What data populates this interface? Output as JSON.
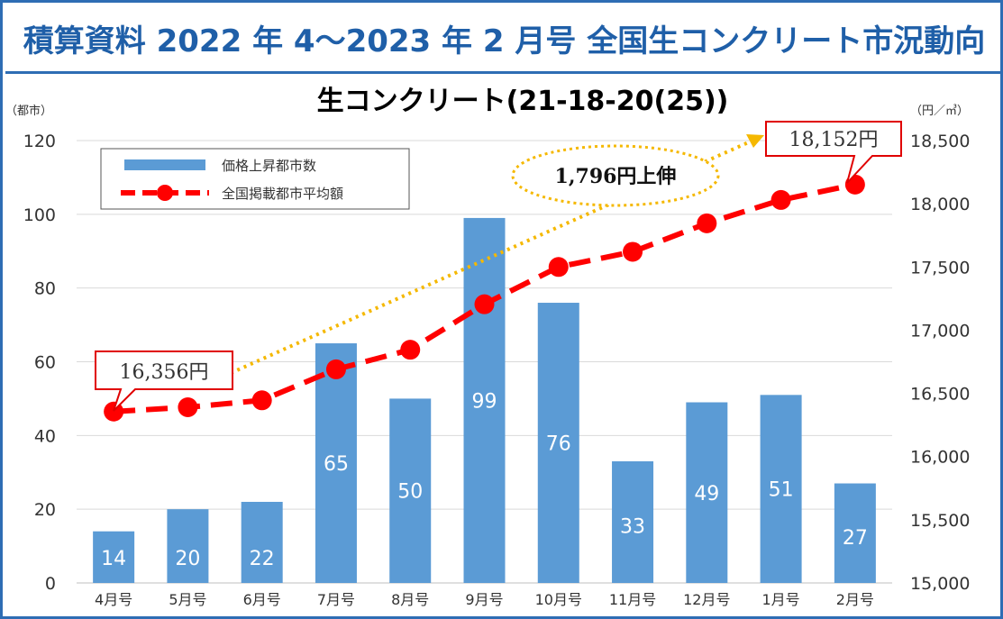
{
  "header": {
    "title": "積算資料 2022 年 4～2023 年 2 月号  全国生コンクリート市況動向"
  },
  "colors": {
    "frame": "#2e6db4",
    "title": "#1f5fa8",
    "bar": "#5b9bd5",
    "line": "#ff0000",
    "callout_border": "#e00000",
    "arrow": "#f5b800"
  },
  "chart_data": {
    "type": "bar",
    "title": "生コンクリート(21-18-20(25))",
    "categories": [
      "4月号",
      "5月号",
      "6月号",
      "7月号",
      "8月号",
      "9月号",
      "10月号",
      "11月号",
      "12月号",
      "1月号",
      "2月号"
    ],
    "y_left": {
      "unit": "（都市）",
      "lim": [
        0,
        120
      ],
      "ticks": [
        "0",
        "20",
        "40",
        "60",
        "80",
        "100",
        "120"
      ]
    },
    "y_right": {
      "unit": "（円／㎥）",
      "lim": [
        15000,
        18500
      ],
      "ticks": [
        "15,000",
        "15,500",
        "16,000",
        "16,500",
        "17,000",
        "17,500",
        "18,000",
        "18,500"
      ]
    },
    "grid": true,
    "legend_position": "top-left",
    "series": [
      {
        "name": "価格上昇都市数",
        "type": "bar",
        "axis": "left",
        "values": [
          14,
          20,
          22,
          65,
          50,
          99,
          76,
          33,
          49,
          51,
          27
        ],
        "labels": [
          "14",
          "20",
          "22",
          "65",
          "50",
          "99",
          "76",
          "33",
          "49",
          "51",
          "27"
        ]
      },
      {
        "name": "全国掲載都市平均額",
        "type": "line",
        "axis": "right",
        "values": [
          16356,
          16390,
          16445,
          16690,
          16845,
          17205,
          17500,
          17620,
          17845,
          18030,
          18152
        ]
      }
    ],
    "annotations": {
      "start_callout": "16,356円",
      "end_callout": "18,152円",
      "rise_label": "1,796円上伸"
    }
  }
}
